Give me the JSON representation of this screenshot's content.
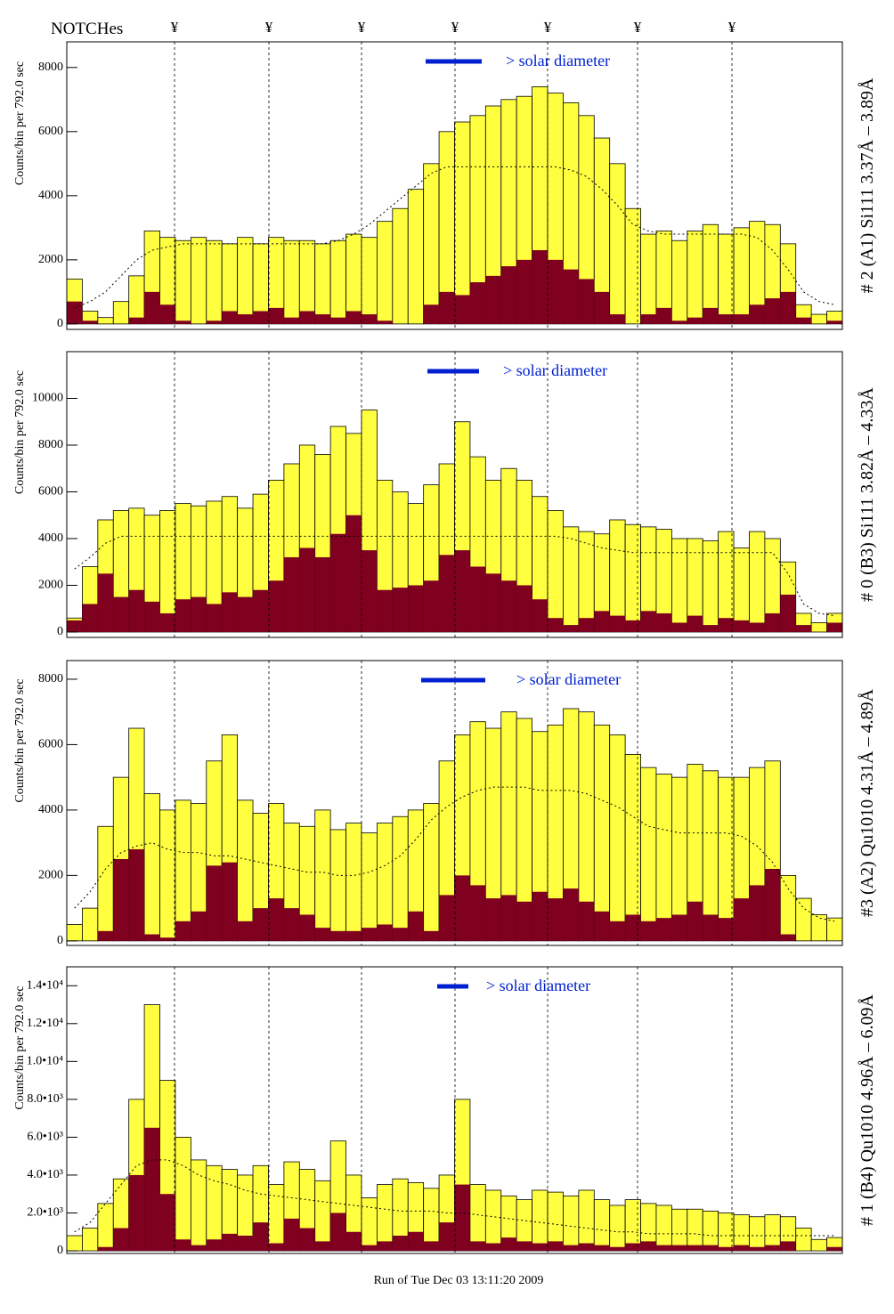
{
  "notch_title": "NOTCHes",
  "notches": [
    "¥",
    "¥",
    "¥",
    "¥",
    "¥",
    "¥",
    "¥"
  ],
  "footer": "Run of Tue Dec 03 13:11:20 2009",
  "chart_data": [
    {
      "type": "histogram",
      "title": "# 2 (A1) Si111  3.37Å – 3.89Å",
      "ylabel": "Counts/bin per    792.0 sec",
      "annotation": "> solar diameter",
      "ylim": [
        -170,
        8800
      ],
      "yticks": [
        0,
        2000,
        4000,
        6000,
        8000
      ],
      "series": [
        {
          "color": "#ffff40",
          "values": [
            1400,
            400,
            200,
            700,
            1500,
            2900,
            2700,
            2600,
            2700,
            2600,
            2500,
            2700,
            2500,
            2700,
            2600,
            2600,
            2500,
            2600,
            2800,
            2700,
            3200,
            3600,
            4200,
            5000,
            6000,
            6300,
            6500,
            6800,
            7000,
            7100,
            7400,
            7200,
            6900,
            6500,
            5800,
            5000,
            3600,
            2800,
            2900,
            2600,
            2900,
            3100,
            2800,
            3000,
            3200,
            3100,
            2500,
            600,
            300,
            400
          ]
        },
        {
          "color": "#800020",
          "values": [
            700,
            100,
            0,
            0,
            200,
            1000,
            600,
            100,
            0,
            100,
            400,
            300,
            400,
            500,
            200,
            400,
            300,
            200,
            400,
            300,
            100,
            0,
            0,
            600,
            1000,
            900,
            1300,
            1500,
            1800,
            2000,
            2300,
            2000,
            1700,
            1400,
            1000,
            300,
            0,
            300,
            500,
            100,
            200,
            500,
            300,
            300,
            600,
            800,
            1000,
            200,
            0,
            100
          ]
        },
        {
          "color": "#000000",
          "type": "line",
          "values": [
            500,
            700,
            1000,
            1500,
            2000,
            2300,
            2400,
            2500,
            2500,
            2500,
            2500,
            2500,
            2500,
            2500,
            2500,
            2500,
            2500,
            2600,
            2800,
            3100,
            3500,
            3900,
            4300,
            4700,
            4900,
            4900,
            4900,
            4900,
            4900,
            4900,
            4900,
            4900,
            4800,
            4600,
            4200,
            3700,
            3100,
            2900,
            2800,
            2800,
            2800,
            2800,
            2800,
            2800,
            2700,
            2300,
            1700,
            1000,
            700,
            600
          ]
        }
      ]
    },
    {
      "type": "histogram",
      "title": "# 0 (B3) Si111  3.82Å – 4.33Å",
      "ylabel": "Counts/bin per    792.0 sec",
      "annotation": "> solar diameter",
      "ylim": [
        -230,
        12000
      ],
      "yticks": [
        0,
        2000,
        4000,
        6000,
        8000,
        10000
      ],
      "series": [
        {
          "color": "#ffff40",
          "values": [
            600,
            2800,
            4800,
            5200,
            5300,
            5000,
            5200,
            5500,
            5400,
            5600,
            5800,
            5300,
            5900,
            6500,
            7200,
            8000,
            7600,
            8800,
            8500,
            9500,
            6500,
            6000,
            5500,
            6300,
            7200,
            9000,
            7500,
            6500,
            7000,
            6500,
            5800,
            5200,
            4500,
            4300,
            4200,
            4800,
            4600,
            4500,
            4400,
            4000,
            4000,
            3900,
            4300,
            3600,
            4300,
            4000,
            3000,
            800,
            400,
            800
          ]
        },
        {
          "color": "#800020",
          "values": [
            500,
            1200,
            2500,
            1500,
            1800,
            1300,
            800,
            1400,
            1500,
            1200,
            1700,
            1500,
            1800,
            2200,
            3200,
            3600,
            3200,
            4200,
            5000,
            3500,
            1800,
            1900,
            2000,
            2200,
            3300,
            3500,
            2800,
            2500,
            2200,
            2000,
            1400,
            600,
            300,
            600,
            900,
            700,
            500,
            900,
            800,
            400,
            700,
            300,
            600,
            500,
            400,
            800,
            1600,
            300,
            0,
            400
          ]
        },
        {
          "color": "#000000",
          "type": "line",
          "values": [
            2700,
            3200,
            3800,
            4100,
            4100,
            4100,
            4100,
            4100,
            4100,
            4100,
            4100,
            4100,
            4100,
            4100,
            4100,
            4100,
            4100,
            4100,
            4100,
            4100,
            4100,
            4100,
            4100,
            4100,
            4100,
            4100,
            4100,
            4100,
            4100,
            4100,
            4100,
            4100,
            4000,
            3800,
            3600,
            3500,
            3400,
            3400,
            3400,
            3400,
            3400,
            3400,
            3400,
            3400,
            3400,
            3400,
            2500,
            1200,
            800,
            700
          ]
        }
      ]
    },
    {
      "type": "histogram",
      "title": "#3 (A2) Qu1010  4.31Å – 4.89Å",
      "ylabel": "Counts/bin per    792.0 sec",
      "annotation": "> solar diameter",
      "ylim": [
        -140,
        8570
      ],
      "yticks": [
        0,
        2000,
        4000,
        6000,
        8000
      ],
      "series": [
        {
          "color": "#ffff40",
          "values": [
            500,
            1000,
            3500,
            5000,
            6500,
            4500,
            4000,
            4300,
            4200,
            5500,
            6300,
            4300,
            3900,
            4200,
            3600,
            3500,
            4000,
            3400,
            3600,
            3300,
            3600,
            3800,
            4000,
            4200,
            5500,
            6300,
            6700,
            6500,
            7000,
            6800,
            6400,
            6600,
            7100,
            7000,
            6600,
            6300,
            5700,
            5300,
            5100,
            5000,
            5400,
            5200,
            5000,
            5000,
            5300,
            5500,
            2000,
            1300,
            800,
            700
          ]
        },
        {
          "color": "#800020",
          "values": [
            0,
            0,
            300,
            2500,
            2800,
            200,
            100,
            600,
            900,
            2300,
            2400,
            600,
            1000,
            1300,
            1000,
            800,
            400,
            300,
            300,
            400,
            500,
            400,
            900,
            300,
            1400,
            2000,
            1700,
            1300,
            1400,
            1200,
            1500,
            1300,
            1600,
            1200,
            900,
            600,
            800,
            600,
            700,
            800,
            1200,
            800,
            700,
            1300,
            1700,
            2200,
            200,
            0,
            0,
            0
          ]
        },
        {
          "color": "#000000",
          "type": "line",
          "values": [
            1000,
            1500,
            2200,
            2700,
            2900,
            3000,
            2800,
            2700,
            2700,
            2600,
            2600,
            2500,
            2400,
            2300,
            2200,
            2100,
            2100,
            2000,
            2000,
            2100,
            2300,
            2600,
            3100,
            3700,
            4100,
            4400,
            4600,
            4700,
            4700,
            4700,
            4600,
            4600,
            4600,
            4500,
            4300,
            4100,
            3800,
            3500,
            3400,
            3300,
            3300,
            3300,
            3300,
            3200,
            2900,
            2400,
            1600,
            1000,
            700,
            600
          ]
        }
      ]
    },
    {
      "type": "histogram",
      "title": "# 1 (B4) Qu1010 4.96Å – 6.09Å",
      "ylabel": "Counts/bin per    792.0 sec",
      "annotation": "> solar diameter",
      "ylim": [
        -140,
        15000
      ],
      "yticks": [
        0,
        {
          "value": 2000,
          "label": "2.0•10³"
        },
        {
          "value": 4000,
          "label": "4.0•10³"
        },
        {
          "value": 6000,
          "label": "6.0•10³"
        },
        {
          "value": 8000,
          "label": "8.0•10³"
        },
        {
          "value": 10000,
          "label": "1.0•10⁴"
        },
        {
          "value": 12000,
          "label": "1.2•10⁴"
        },
        {
          "value": 14000,
          "label": "1.4•10⁴"
        }
      ],
      "series": [
        {
          "color": "#ffff40",
          "values": [
            800,
            1200,
            2500,
            3800,
            8000,
            13000,
            9000,
            6000,
            4800,
            4500,
            4300,
            4000,
            4500,
            3500,
            4700,
            4300,
            3700,
            5800,
            4000,
            2800,
            3500,
            3800,
            3600,
            3300,
            4000,
            8000,
            3500,
            3200,
            2900,
            2700,
            3200,
            3100,
            2900,
            3200,
            2700,
            2400,
            2700,
            2500,
            2400,
            2200,
            2200,
            2100,
            2000,
            1900,
            1800,
            1900,
            1800,
            1200,
            600,
            700
          ]
        },
        {
          "color": "#800020",
          "values": [
            0,
            0,
            200,
            1200,
            4000,
            6500,
            3000,
            600,
            300,
            600,
            900,
            800,
            1500,
            400,
            1700,
            1200,
            500,
            2000,
            1000,
            300,
            500,
            800,
            1000,
            500,
            1500,
            3500,
            500,
            400,
            700,
            500,
            400,
            500,
            300,
            400,
            300,
            200,
            400,
            500,
            300,
            300,
            300,
            300,
            200,
            300,
            200,
            300,
            500,
            0,
            0,
            200
          ]
        },
        {
          "color": "#000000",
          "type": "line",
          "values": [
            1000,
            1500,
            2500,
            3500,
            4500,
            4800,
            4800,
            4500,
            4000,
            3700,
            3500,
            3200,
            3000,
            2900,
            2800,
            2700,
            2600,
            2500,
            2400,
            2300,
            2200,
            2100,
            2100,
            2100,
            2000,
            2000,
            1900,
            1800,
            1700,
            1600,
            1500,
            1400,
            1300,
            1200,
            1100,
            1000,
            1000,
            900,
            900,
            900,
            900,
            800,
            800,
            800,
            800,
            800,
            800,
            800,
            800,
            800
          ]
        }
      ]
    }
  ]
}
